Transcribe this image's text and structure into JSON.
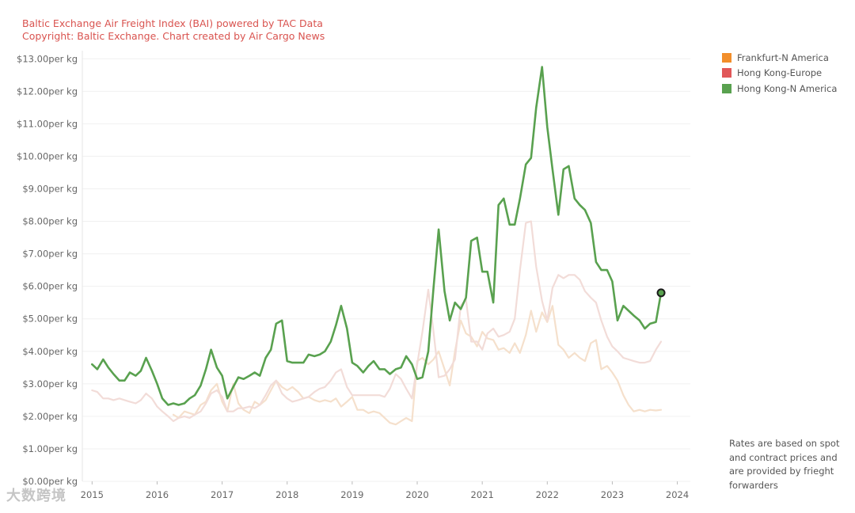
{
  "credit": {
    "line1": "Baltic Exchange Air Freight Index (BAI) powered by TAC Data",
    "line2": "Copyright: Baltic Exchange. Chart created by Air Cargo News"
  },
  "note": "Rates are based on spot and contract prices and are provided by frieght forwarders",
  "watermark": "大数跨境",
  "chart_data": {
    "type": "line",
    "title": "Baltic Exchange Air Freight Index (BAI)",
    "xlabel": "",
    "ylabel": "",
    "xlim": [
      2014.85,
      2024.2
    ],
    "ylim": [
      0,
      13.25
    ],
    "grid": true,
    "legend_position": "top-right",
    "y_ticks": [
      0,
      1,
      2,
      3,
      4,
      5,
      6,
      7,
      8,
      9,
      10,
      11,
      12,
      13
    ],
    "y_tick_labels": [
      "$0.00per kg",
      "$1.00per kg",
      "$2.00per kg",
      "$3.00per kg",
      "$4.00per kg",
      "$5.00per kg",
      "$6.00per kg",
      "$7.00per kg",
      "$8.00per kg",
      "$9.00per kg",
      "$10.00per kg",
      "$11.00per kg",
      "$12.00per kg",
      "$13.00per kg"
    ],
    "x_ticks": [
      2015,
      2016,
      2017,
      2018,
      2019,
      2020,
      2021,
      2022,
      2023,
      2024
    ],
    "x_tick_labels": [
      "2015",
      "2016",
      "2017",
      "2018",
      "2019",
      "2020",
      "2021",
      "2022",
      "2023",
      "2024"
    ],
    "series": [
      {
        "name": "Frankfurt-N America",
        "color": "#f28e2b",
        "display_color": "#f5e0cc",
        "x": [
          2016.25,
          2016.33,
          2016.42,
          2016.5,
          2016.58,
          2016.67,
          2016.75,
          2016.83,
          2016.92,
          2017.0,
          2017.08,
          2017.17,
          2017.25,
          2017.33,
          2017.42,
          2017.5,
          2017.58,
          2017.67,
          2017.75,
          2017.83,
          2017.92,
          2018.0,
          2018.08,
          2018.17,
          2018.25,
          2018.33,
          2018.42,
          2018.5,
          2018.58,
          2018.67,
          2018.75,
          2018.83,
          2018.92,
          2019.0,
          2019.08,
          2019.17,
          2019.25,
          2019.33,
          2019.42,
          2019.5,
          2019.58,
          2019.67,
          2019.75,
          2019.83,
          2019.92,
          2020.0,
          2020.08,
          2020.17,
          2020.25,
          2020.33,
          2020.42,
          2020.5,
          2020.58,
          2020.67,
          2020.75,
          2020.83,
          2020.92,
          2021.0,
          2021.08,
          2021.17,
          2021.25,
          2021.33,
          2021.42,
          2021.5,
          2021.58,
          2021.67,
          2021.75,
          2021.83,
          2021.92,
          2022.0,
          2022.08,
          2022.17,
          2022.25,
          2022.33,
          2022.42,
          2022.5,
          2022.58,
          2022.67,
          2022.75,
          2022.83,
          2022.92,
          2023.0,
          2023.08,
          2023.17,
          2023.25,
          2023.33,
          2023.42,
          2023.5,
          2023.58,
          2023.67,
          2023.75
        ],
        "values": [
          2.05,
          1.95,
          2.15,
          2.1,
          2.05,
          2.35,
          2.45,
          2.8,
          3.0,
          2.45,
          2.15,
          3.0,
          2.4,
          2.2,
          2.1,
          2.45,
          2.35,
          2.5,
          2.8,
          3.1,
          2.9,
          2.8,
          2.9,
          2.75,
          2.55,
          2.6,
          2.5,
          2.45,
          2.5,
          2.45,
          2.55,
          2.3,
          2.45,
          2.6,
          2.2,
          2.2,
          2.1,
          2.15,
          2.1,
          1.95,
          1.8,
          1.75,
          1.85,
          1.95,
          1.85,
          3.7,
          3.8,
          3.6,
          3.75,
          4.0,
          3.45,
          2.95,
          4.0,
          4.95,
          4.55,
          4.45,
          4.15,
          4.6,
          4.4,
          4.35,
          4.05,
          4.1,
          3.95,
          4.25,
          3.95,
          4.5,
          5.25,
          4.6,
          5.2,
          4.9,
          5.4,
          4.2,
          4.05,
          3.8,
          3.95,
          3.8,
          3.7,
          4.25,
          4.35,
          3.45,
          3.55,
          3.35,
          3.1,
          2.65,
          2.35,
          2.15,
          2.2,
          2.15,
          2.2,
          2.18,
          2.2
        ]
      },
      {
        "name": "Hong Kong-Europe",
        "color": "#e15759",
        "display_color": "#f2dcd8",
        "x": [
          2015.0,
          2015.08,
          2015.17,
          2015.25,
          2015.33,
          2015.42,
          2015.5,
          2015.58,
          2015.67,
          2015.75,
          2015.83,
          2015.92,
          2016.0,
          2016.08,
          2016.17,
          2016.25,
          2016.33,
          2016.42,
          2016.5,
          2016.58,
          2016.67,
          2016.75,
          2016.83,
          2016.92,
          2017.0,
          2017.08,
          2017.17,
          2017.25,
          2017.33,
          2017.42,
          2017.5,
          2017.58,
          2017.67,
          2017.75,
          2017.83,
          2017.92,
          2018.0,
          2018.08,
          2018.17,
          2018.25,
          2018.33,
          2018.42,
          2018.5,
          2018.58,
          2018.67,
          2018.75,
          2018.83,
          2018.92,
          2019.0,
          2019.08,
          2019.17,
          2019.25,
          2019.33,
          2019.42,
          2019.5,
          2019.58,
          2019.67,
          2019.75,
          2019.83,
          2019.92,
          2020.0,
          2020.08,
          2020.17,
          2020.25,
          2020.33,
          2020.42,
          2020.5,
          2020.58,
          2020.67,
          2020.75,
          2020.83,
          2020.92,
          2021.0,
          2021.08,
          2021.17,
          2021.25,
          2021.33,
          2021.42,
          2021.5,
          2021.58,
          2021.67,
          2021.75,
          2021.83,
          2021.92,
          2022.0,
          2022.08,
          2022.17,
          2022.25,
          2022.33,
          2022.42,
          2022.5,
          2022.58,
          2022.67,
          2022.75,
          2022.83,
          2022.92,
          2023.0,
          2023.08,
          2023.17,
          2023.25,
          2023.33,
          2023.42,
          2023.5,
          2023.58,
          2023.67,
          2023.75
        ],
        "values": [
          2.8,
          2.75,
          2.55,
          2.55,
          2.5,
          2.55,
          2.5,
          2.45,
          2.4,
          2.5,
          2.7,
          2.55,
          2.3,
          2.15,
          2.0,
          1.85,
          1.95,
          2.0,
          1.95,
          2.05,
          2.15,
          2.4,
          2.7,
          2.8,
          2.6,
          2.15,
          2.15,
          2.25,
          2.25,
          2.3,
          2.25,
          2.35,
          2.65,
          2.95,
          3.1,
          2.7,
          2.55,
          2.45,
          2.5,
          2.55,
          2.6,
          2.75,
          2.85,
          2.9,
          3.1,
          3.35,
          3.45,
          2.9,
          2.65,
          2.65,
          2.65,
          2.65,
          2.65,
          2.65,
          2.6,
          2.85,
          3.3,
          3.15,
          2.85,
          2.55,
          3.6,
          4.6,
          5.9,
          4.6,
          3.2,
          3.25,
          3.45,
          3.75,
          5.4,
          5.6,
          4.3,
          4.3,
          4.05,
          4.55,
          4.7,
          4.45,
          4.5,
          4.6,
          5.0,
          6.5,
          7.95,
          8.0,
          6.6,
          5.55,
          4.95,
          5.95,
          6.35,
          6.25,
          6.35,
          6.35,
          6.2,
          5.85,
          5.65,
          5.5,
          4.95,
          4.45,
          4.15,
          4.0,
          3.8,
          3.75,
          3.7,
          3.65,
          3.65,
          3.7,
          4.05,
          4.3
        ]
      },
      {
        "name": "Hong Kong-N America",
        "color": "#59a14f",
        "display_color": "#59a14f",
        "x": [
          2015.0,
          2015.08,
          2015.17,
          2015.25,
          2015.33,
          2015.42,
          2015.5,
          2015.58,
          2015.67,
          2015.75,
          2015.83,
          2015.92,
          2016.0,
          2016.08,
          2016.17,
          2016.25,
          2016.33,
          2016.42,
          2016.5,
          2016.58,
          2016.67,
          2016.75,
          2016.83,
          2016.92,
          2017.0,
          2017.08,
          2017.17,
          2017.25,
          2017.33,
          2017.42,
          2017.5,
          2017.58,
          2017.67,
          2017.75,
          2017.83,
          2017.92,
          2018.0,
          2018.08,
          2018.17,
          2018.25,
          2018.33,
          2018.42,
          2018.5,
          2018.58,
          2018.67,
          2018.75,
          2018.83,
          2018.92,
          2019.0,
          2019.08,
          2019.17,
          2019.25,
          2019.33,
          2019.42,
          2019.5,
          2019.58,
          2019.67,
          2019.75,
          2019.83,
          2019.92,
          2020.0,
          2020.08,
          2020.17,
          2020.25,
          2020.33,
          2020.42,
          2020.5,
          2020.58,
          2020.67,
          2020.75,
          2020.83,
          2020.92,
          2021.0,
          2021.08,
          2021.17,
          2021.25,
          2021.33,
          2021.42,
          2021.5,
          2021.58,
          2021.67,
          2021.75,
          2021.83,
          2021.92,
          2022.0,
          2022.08,
          2022.17,
          2022.25,
          2022.33,
          2022.42,
          2022.5,
          2022.58,
          2022.67,
          2022.75,
          2022.83,
          2022.92,
          2023.0,
          2023.08,
          2023.17,
          2023.25,
          2023.33,
          2023.42,
          2023.5,
          2023.58,
          2023.67,
          2023.75
        ],
        "values": [
          3.6,
          3.45,
          3.75,
          3.5,
          3.3,
          3.1,
          3.1,
          3.35,
          3.25,
          3.4,
          3.8,
          3.4,
          3.0,
          2.55,
          2.35,
          2.4,
          2.35,
          2.4,
          2.55,
          2.65,
          2.95,
          3.45,
          4.05,
          3.5,
          3.25,
          2.55,
          2.9,
          3.2,
          3.15,
          3.25,
          3.35,
          3.25,
          3.8,
          4.05,
          4.85,
          4.95,
          3.7,
          3.65,
          3.65,
          3.65,
          3.9,
          3.85,
          3.9,
          4.0,
          4.3,
          4.8,
          5.4,
          4.7,
          3.65,
          3.55,
          3.35,
          3.55,
          3.7,
          3.45,
          3.45,
          3.3,
          3.45,
          3.5,
          3.85,
          3.6,
          3.15,
          3.2,
          4.0,
          5.95,
          7.75,
          5.85,
          4.95,
          5.5,
          5.3,
          5.65,
          7.4,
          7.5,
          6.45,
          6.45,
          5.5,
          8.5,
          8.7,
          7.9,
          7.9,
          8.7,
          9.75,
          9.95,
          11.5,
          12.75,
          10.9,
          9.6,
          8.2,
          9.6,
          9.7,
          8.7,
          8.5,
          8.35,
          7.95,
          6.75,
          6.5,
          6.5,
          6.15,
          4.95,
          5.4,
          5.25,
          5.1,
          4.95,
          4.7,
          4.85,
          4.9,
          5.8
        ]
      }
    ]
  }
}
